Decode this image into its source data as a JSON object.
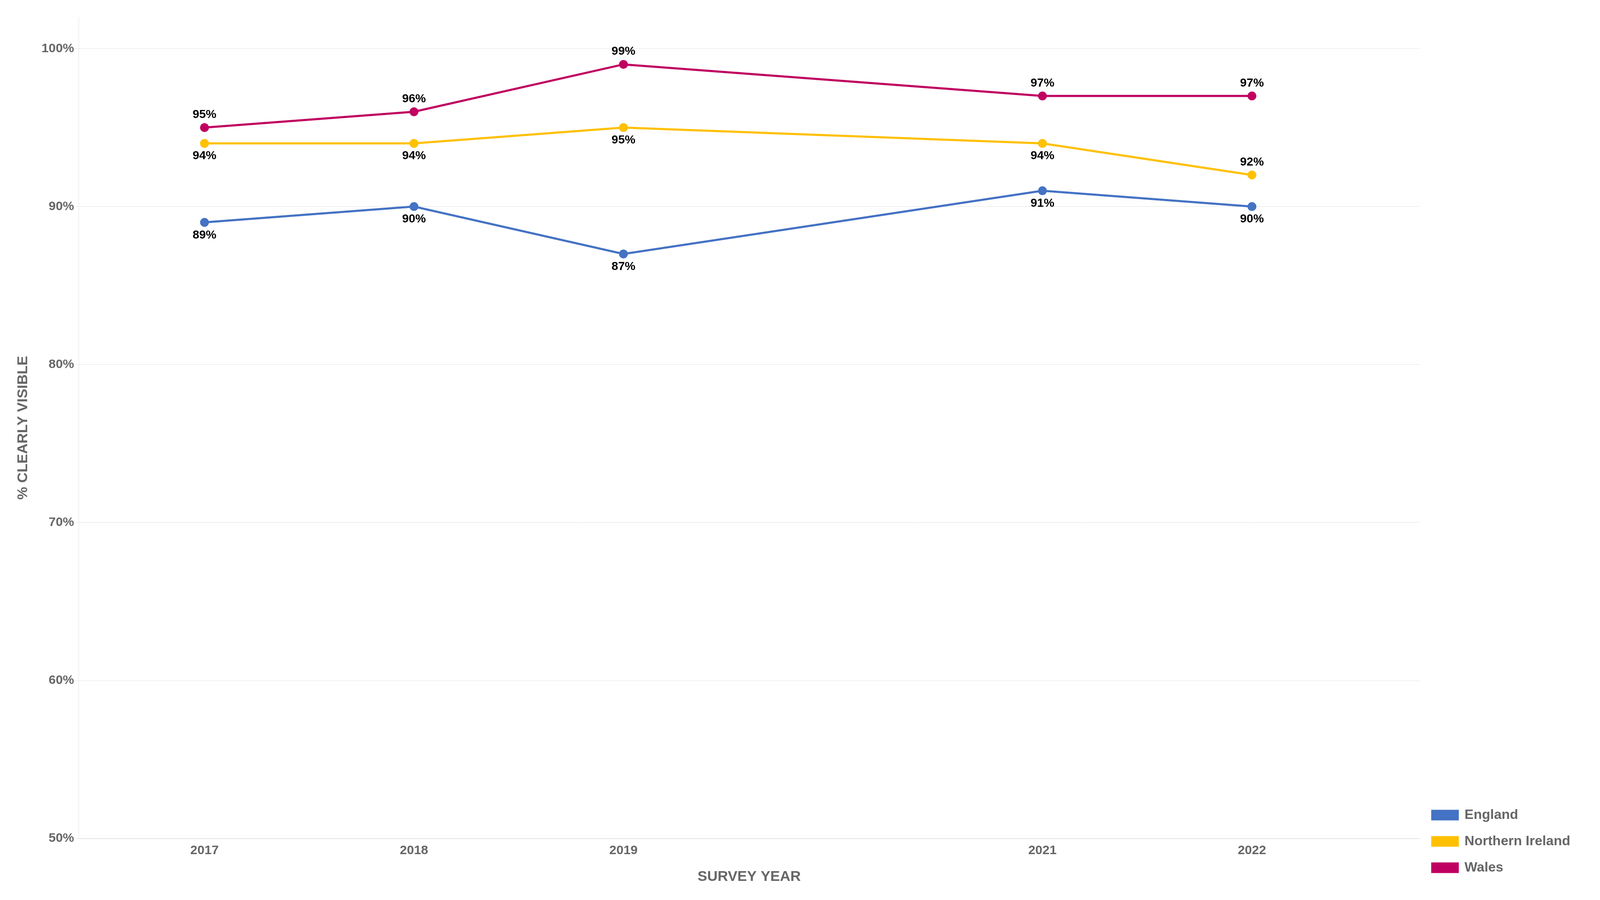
{
  "chart_data": {
    "type": "line",
    "x": [
      2017,
      2018,
      2019,
      2021,
      2022
    ],
    "series": [
      {
        "name": "England",
        "color": "#4472C4",
        "marker": "circle",
        "values": [
          89,
          90,
          87,
          91,
          90
        ],
        "value_labels": [
          "89%",
          "90%",
          "87%",
          "91%",
          "90%"
        ]
      },
      {
        "name": "Northern Ireland",
        "color": "#FFC000",
        "marker": "circle",
        "values": [
          94,
          94,
          95,
          94,
          92
        ],
        "value_labels": [
          "94%",
          "94%",
          "95%",
          "94%",
          "92%"
        ]
      },
      {
        "name": "Wales",
        "color": "#C00060",
        "marker": "circle",
        "values": [
          95,
          96,
          99,
          97,
          97
        ],
        "value_labels": [
          "95%",
          "96%",
          "99%",
          "97%",
          "97%"
        ]
      }
    ],
    "xlabel": "SURVEY YEAR",
    "ylabel": "% CLEARLY VISIBLE",
    "xlim": [
      2016.4,
      2022.8
    ],
    "xticks": [
      2017,
      2018,
      2019,
      2021,
      2022
    ],
    "ylim": [
      50,
      102
    ],
    "yticks": [
      {
        "value": 50,
        "label": "50%"
      },
      {
        "value": 60,
        "label": "60%"
      },
      {
        "value": 70,
        "label": "70%"
      },
      {
        "value": 80,
        "label": "80%"
      },
      {
        "value": 90,
        "label": "90%"
      },
      {
        "value": 100,
        "label": "100%"
      }
    ],
    "grid": true,
    "legend": "lower right",
    "data_labels": true
  }
}
